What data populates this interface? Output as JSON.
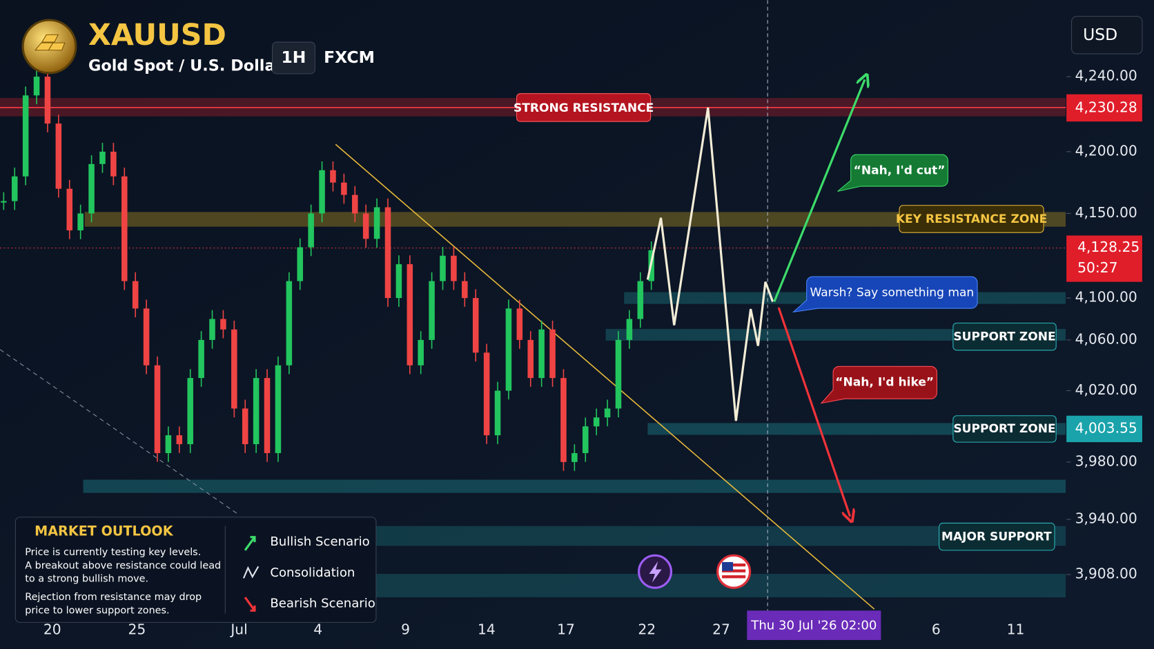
{
  "header": {
    "symbol": "XAUUSD",
    "name": "Gold Spot / U.S. Dollar",
    "interval": "1H",
    "broker": "FXCM"
  },
  "currency_button": "USD",
  "price_axis": {
    "ticks": [
      {
        "value": 4240,
        "label": "4,240.00"
      },
      {
        "value": 4200,
        "label": "4,200.00"
      },
      {
        "value": 4150,
        "label": "4,150.00"
      },
      {
        "value": 4100,
        "label": "4,100.00"
      },
      {
        "value": 4060,
        "label": "4,060.00"
      },
      {
        "value": 4020,
        "label": "4,020.00"
      },
      {
        "value": 3980,
        "label": "3,980.00"
      },
      {
        "value": 3940,
        "label": "3,940.00"
      },
      {
        "value": 3908,
        "label": "3,908.00"
      }
    ],
    "resistance_price": "4,230.28",
    "last_price": "4,128.25",
    "countdown": "50:27",
    "support_price": "4,003.55"
  },
  "time_axis": {
    "labels": [
      "20",
      "25",
      "Jul",
      "4",
      "9",
      "14",
      "17",
      "22",
      "27",
      "6",
      "11"
    ],
    "crosshair": "Thu 30 Jul '26  02:00"
  },
  "zones": {
    "strong_resistance": "STRONG RESISTANCE",
    "key_resistance": "KEY RESISTANCE ZONE",
    "support_1": "SUPPORT ZONE",
    "support_2": "SUPPORT ZONE",
    "major_support": "MAJOR SUPPORT"
  },
  "callouts": {
    "bull": "“Nah, I'd cut”",
    "neutral": "Warsh? Say something man",
    "bear": "“Nah, I'd hike”"
  },
  "outlook": {
    "title": "MARKET OUTLOOK",
    "lines": [
      "Price is currently testing key levels.",
      "A breakout above resistance could lead",
      "to a strong bullish move.",
      "Rejection from resistance may drop",
      "price to lower support zones."
    ],
    "legend": [
      "Bullish Scenario",
      "Consolidation",
      "Bearish Scenario"
    ]
  },
  "price_series": {
    "closes": [
      4160,
      4180,
      4230,
      4240,
      4215,
      4170,
      4140,
      4150,
      4190,
      4200,
      4180,
      4110,
      4090,
      4040,
      3985,
      3995,
      3990,
      4030,
      4060,
      4080,
      4070,
      4010,
      3990,
      4030,
      3985,
      4040,
      4110,
      4130,
      4150,
      4185,
      4175,
      4165,
      4150,
      4135,
      4155,
      4100,
      4120,
      4040,
      4060,
      4110,
      4125,
      4110,
      4100,
      4050,
      3995,
      4020,
      4090,
      4060,
      4030,
      4070,
      4030,
      3980,
      3985,
      4000,
      4005,
      4010,
      4060,
      4080,
      4110,
      4128.25
    ]
  }
}
